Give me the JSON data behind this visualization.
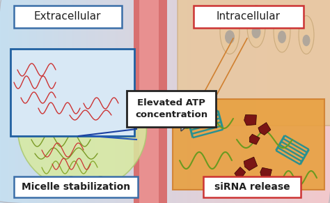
{
  "bg_left_color": "#c5dff0",
  "bg_right_color": "#f2c8cb",
  "extracellular_label": "Extracellular",
  "intracellular_label": "Intracellular",
  "atp_label": "Elevated ATP\nconcentration",
  "micelle_label": "Micelle stabilization",
  "sirna_label": "siRNA release",
  "extracellular_box_color": "#3a6ea8",
  "intracellular_box_color": "#cc3333",
  "atp_box_color": "#222222",
  "micelle_box_color": "#3a6ea8",
  "sirna_box_color": "#cc3333",
  "orange_box_color": "#e8a040",
  "orange_box_edge": "#d08030",
  "teal_color": "#2a9090",
  "green_strand": "#6a9a20",
  "red_strand": "#cc3333",
  "dark_red": "#7a1515",
  "vessel_color": "#d87070",
  "vessel_light": "#e89090",
  "micelle_fill": "#d8eaa0",
  "micelle_edge": "#aac870",
  "cell_color": "#e8c8a0",
  "cell_edge": "#c8a878",
  "inner_box_bg": "#d8e8f5",
  "inner_box_edge": "#2060a0",
  "arrow_fill": "#d0d0d0",
  "arrow_edge": "#505050",
  "figsize": [
    4.74,
    2.91
  ],
  "dpi": 100
}
